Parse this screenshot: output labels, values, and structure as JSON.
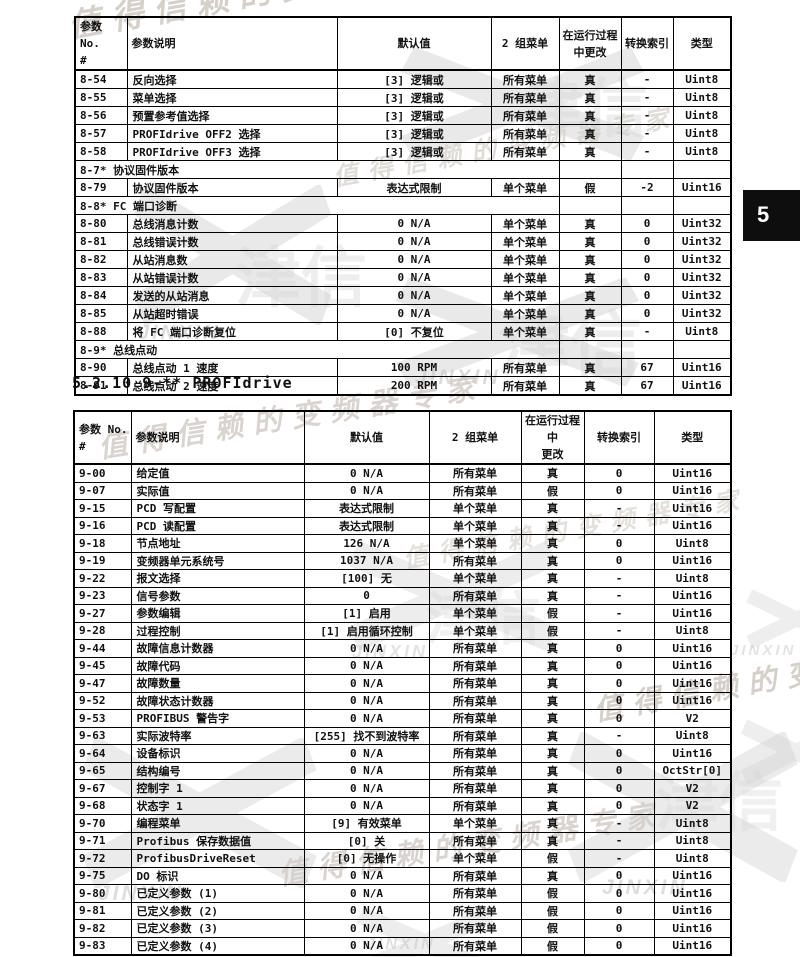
{
  "page": {
    "chapter_tab": "5",
    "heading": "5.2.10 9-** PROFIdrive"
  },
  "colors": {
    "tab_background": "#0e0e0e",
    "tab_text": "#ffffff",
    "table_border": "#000000",
    "watermark_gray": "#d0d0d0"
  },
  "watermark": {
    "cn_text": "值得信赖的变频器专家",
    "brand_cn": "津信",
    "brand_en": "JINXIN"
  },
  "table1": {
    "headers": [
      "参数 No.\n#",
      "参数说明",
      "默认值",
      "2 组菜单",
      "在运行过程\n中更改",
      "转换索引",
      "类型"
    ],
    "rows": [
      {
        "cells": [
          "8-54",
          "反向选择",
          "[3] 逻辑或",
          "所有菜单",
          "真",
          "-",
          "Uint8"
        ]
      },
      {
        "cells": [
          "8-55",
          "菜单选择",
          "[3] 逻辑或",
          "所有菜单",
          "真",
          "-",
          "Uint8"
        ]
      },
      {
        "cells": [
          "8-56",
          "预置参考值选择",
          "[3] 逻辑或",
          "所有菜单",
          "真",
          "-",
          "Uint8"
        ]
      },
      {
        "cells": [
          "8-57",
          "PROFIdrive OFF2 选择",
          "[3] 逻辑或",
          "所有菜单",
          "真",
          "-",
          "Uint8"
        ]
      },
      {
        "cells": [
          "8-58",
          "PROFIdrive OFF3 选择",
          "[3] 逻辑或",
          "所有菜单",
          "真",
          "-",
          "Uint8"
        ]
      },
      {
        "section": "8-7* 协议固件版本"
      },
      {
        "cells": [
          "8-79",
          "协议固件版本",
          "表达式限制",
          "单个菜单",
          "假",
          "-2",
          "Uint16"
        ]
      },
      {
        "section": "8-8* FC 端口诊断"
      },
      {
        "cells": [
          "8-80",
          "总线消息计数",
          "0 N/A",
          "单个菜单",
          "真",
          "0",
          "Uint32"
        ]
      },
      {
        "cells": [
          "8-81",
          "总线错误计数",
          "0 N/A",
          "单个菜单",
          "真",
          "0",
          "Uint32"
        ]
      },
      {
        "cells": [
          "8-82",
          "从站消息数",
          "0 N/A",
          "单个菜单",
          "真",
          "0",
          "Uint32"
        ]
      },
      {
        "cells": [
          "8-83",
          "从站错误计数",
          "0 N/A",
          "单个菜单",
          "真",
          "0",
          "Uint32"
        ]
      },
      {
        "cells": [
          "8-84",
          "发送的从站消息",
          "0 N/A",
          "单个菜单",
          "真",
          "0",
          "Uint32"
        ]
      },
      {
        "cells": [
          "8-85",
          "从站超时错误",
          "0 N/A",
          "单个菜单",
          "真",
          "0",
          "Uint32"
        ]
      },
      {
        "cells": [
          "8-88",
          "将 FC 端口诊断复位",
          "[0] 不复位",
          "单个菜单",
          "真",
          "-",
          "Uint8"
        ]
      },
      {
        "section": "8-9* 总线点动"
      },
      {
        "cells": [
          "8-90",
          "总线点动 1 速度",
          "100 RPM",
          "所有菜单",
          "真",
          "67",
          "Uint16"
        ]
      },
      {
        "cells": [
          "8-91",
          "总线点动 2 速度",
          "200 RPM",
          "所有菜单",
          "真",
          "67",
          "Uint16"
        ]
      }
    ]
  },
  "table2": {
    "headers": [
      "参数 No.\n#",
      "参数说明",
      "默认值",
      "2 组菜单",
      "在运行过程中\n更改",
      "转换索引",
      "类型"
    ],
    "rows": [
      {
        "cells": [
          "9-00",
          "给定值",
          "0 N/A",
          "所有菜单",
          "真",
          "0",
          "Uint16"
        ]
      },
      {
        "cells": [
          "9-07",
          "实际值",
          "0 N/A",
          "所有菜单",
          "假",
          "0",
          "Uint16"
        ]
      },
      {
        "cells": [
          "9-15",
          "PCD 写配置",
          "表达式限制",
          "单个菜单",
          "真",
          "-",
          "Uint16"
        ]
      },
      {
        "cells": [
          "9-16",
          "PCD 读配置",
          "表达式限制",
          "单个菜单",
          "真",
          "-",
          "Uint16"
        ]
      },
      {
        "cells": [
          "9-18",
          "节点地址",
          "126 N/A",
          "单个菜单",
          "真",
          "0",
          "Uint8"
        ]
      },
      {
        "cells": [
          "9-19",
          "变频器单元系统号",
          "1037 N/A",
          "所有菜单",
          "真",
          "0",
          "Uint16"
        ]
      },
      {
        "cells": [
          "9-22",
          "报文选择",
          "[100] 无",
          "单个菜单",
          "真",
          "-",
          "Uint8"
        ]
      },
      {
        "cells": [
          "9-23",
          "信号参数",
          "0",
          "所有菜单",
          "真",
          "-",
          "Uint16"
        ]
      },
      {
        "cells": [
          "9-27",
          "参数编辑",
          "[1] 启用",
          "单个菜单",
          "假",
          "-",
          "Uint16"
        ]
      },
      {
        "cells": [
          "9-28",
          "过程控制",
          "[1] 启用循环控制",
          "单个菜单",
          "假",
          "-",
          "Uint8"
        ]
      },
      {
        "cells": [
          "9-44",
          "故障信息计数器",
          "0 N/A",
          "所有菜单",
          "真",
          "0",
          "Uint16"
        ]
      },
      {
        "cells": [
          "9-45",
          "故障代码",
          "0 N/A",
          "所有菜单",
          "真",
          "0",
          "Uint16"
        ]
      },
      {
        "cells": [
          "9-47",
          "故障数量",
          "0 N/A",
          "所有菜单",
          "真",
          "0",
          "Uint16"
        ]
      },
      {
        "cells": [
          "9-52",
          "故障状态计数器",
          "0 N/A",
          "所有菜单",
          "真",
          "0",
          "Uint16"
        ]
      },
      {
        "cells": [
          "9-53",
          "PROFIBUS 警告字",
          "0 N/A",
          "所有菜单",
          "真",
          "0",
          "V2"
        ]
      },
      {
        "cells": [
          "9-63",
          "实际波特率",
          "[255] 找不到波特率",
          "所有菜单",
          "真",
          "-",
          "Uint8"
        ]
      },
      {
        "cells": [
          "9-64",
          "设备标识",
          "0 N/A",
          "所有菜单",
          "真",
          "0",
          "Uint16"
        ]
      },
      {
        "cells": [
          "9-65",
          "结构编号",
          "0 N/A",
          "所有菜单",
          "真",
          "0",
          "OctStr[0]"
        ]
      },
      {
        "cells": [
          "9-67",
          "控制字 1",
          "0 N/A",
          "所有菜单",
          "真",
          "0",
          "V2"
        ]
      },
      {
        "cells": [
          "9-68",
          "状态字 1",
          "0 N/A",
          "所有菜单",
          "真",
          "0",
          "V2"
        ]
      },
      {
        "cells": [
          "9-70",
          "编程菜单",
          "[9] 有效菜单",
          "单个菜单",
          "真",
          "-",
          "Uint8"
        ]
      },
      {
        "cells": [
          "9-71",
          "Profibus 保存数据值",
          "[0] 关",
          "所有菜单",
          "真",
          "-",
          "Uint8"
        ]
      },
      {
        "cells": [
          "9-72",
          "ProfibusDriveReset",
          "[0] 无操作",
          "单个菜单",
          "假",
          "-",
          "Uint8"
        ]
      },
      {
        "cells": [
          "9-75",
          "DO 标识",
          "0 N/A",
          "所有菜单",
          "真",
          "0",
          "Uint16"
        ]
      },
      {
        "cells": [
          "9-80",
          "已定义参数 (1)",
          "0 N/A",
          "所有菜单",
          "假",
          "0",
          "Uint16"
        ]
      },
      {
        "cells": [
          "9-81",
          "已定义参数 (2)",
          "0 N/A",
          "所有菜单",
          "假",
          "0",
          "Uint16"
        ]
      },
      {
        "cells": [
          "9-82",
          "已定义参数 (3)",
          "0 N/A",
          "所有菜单",
          "假",
          "0",
          "Uint16"
        ]
      },
      {
        "cells": [
          "9-83",
          "已定义参数 (4)",
          "0 N/A",
          "所有菜单",
          "假",
          "0",
          "Uint16"
        ]
      }
    ]
  }
}
